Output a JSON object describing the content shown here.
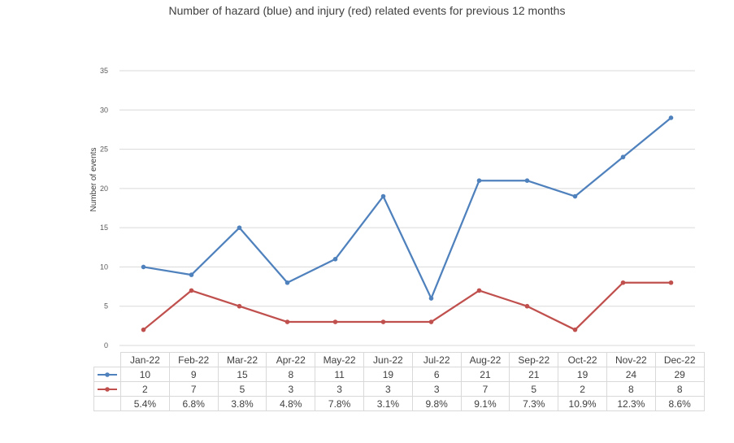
{
  "chart_data": {
    "type": "line",
    "title": "Number of hazard (blue) and injury (red) related events for previous 12 months",
    "ylabel": "Number of events",
    "xlabel": "",
    "ylim": [
      0,
      35
    ],
    "yticks": [
      0,
      5,
      10,
      15,
      20,
      25,
      30,
      35
    ],
    "grid": true,
    "categories": [
      "Jan-22",
      "Feb-22",
      "Mar-22",
      "Apr-22",
      "May-22",
      "Jun-22",
      "Jul-22",
      "Aug-22",
      "Sep-22",
      "Oct-22",
      "Nov-22",
      "Dec-22"
    ],
    "series": [
      {
        "values": [
          10,
          9,
          15,
          8,
          11,
          19,
          6,
          21,
          21,
          19,
          24,
          29
        ],
        "color": "#4f81bd"
      },
      {
        "values": [
          2,
          7,
          5,
          3,
          3,
          3,
          3,
          7,
          5,
          2,
          8,
          8
        ],
        "color": "#c0504d"
      }
    ],
    "table_extra_row": [
      "5.4%",
      "6.8%",
      "3.8%",
      "4.8%",
      "7.8%",
      "3.1%",
      "9.8%",
      "9.1%",
      "7.3%",
      "10.9%",
      "12.3%",
      "8.6%"
    ]
  }
}
